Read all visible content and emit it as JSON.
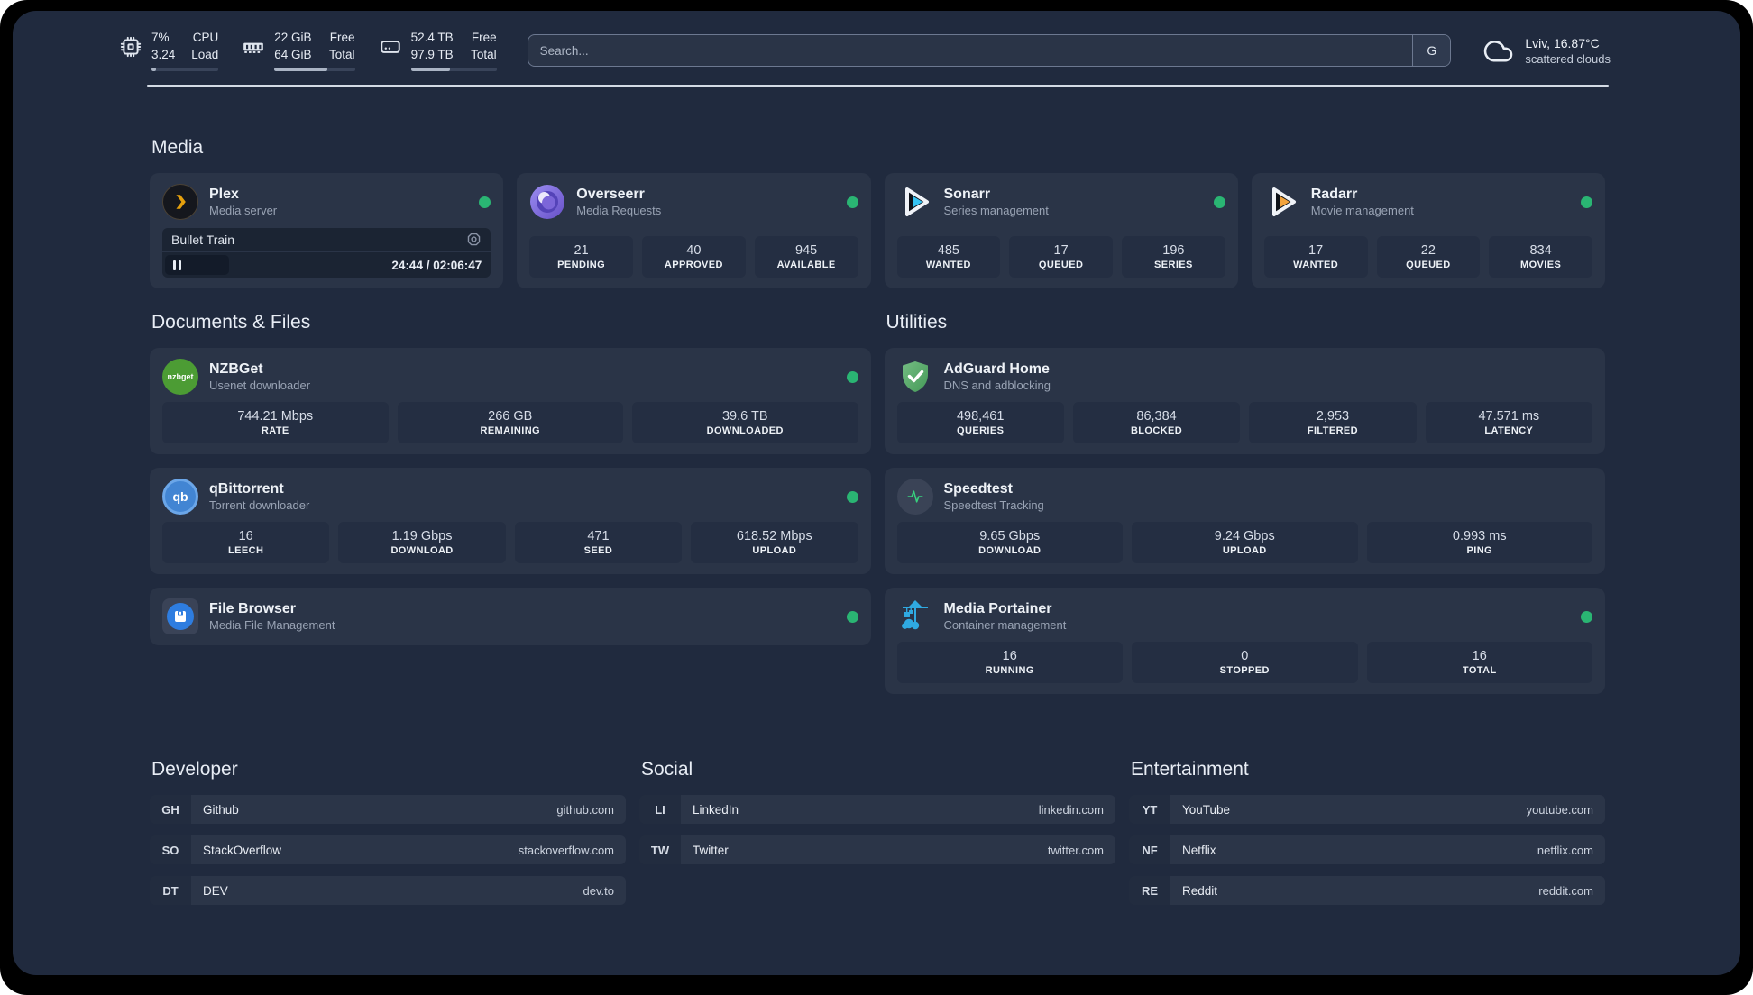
{
  "topbar": {
    "cpu": {
      "value1": "7%",
      "value2": "3.24",
      "label1": "CPU",
      "label2": "Load",
      "progress_pct": 7
    },
    "ram": {
      "value1": "22 GiB",
      "value2": "64 GiB",
      "label1": "Free",
      "label2": "Total",
      "progress_pct": 66
    },
    "disk": {
      "value1": "52.4 TB",
      "value2": "97.9 TB",
      "label1": "Free",
      "label2": "Total",
      "progress_pct": 46
    },
    "search": {
      "placeholder": "Search...",
      "button_label": "G"
    },
    "weather": {
      "location_temp": "Lviv, 16.87°C",
      "condition": "scattered clouds"
    }
  },
  "sections": {
    "media": "Media",
    "documents": "Documents & Files",
    "utilities": "Utilities",
    "developer": "Developer",
    "social": "Social",
    "entertainment": "Entertainment"
  },
  "apps": {
    "plex": {
      "name": "Plex",
      "desc": "Media server",
      "player": {
        "title": "Bullet Train",
        "time": "24:44 / 02:06:47",
        "progress_pct": 19.5
      }
    },
    "overseerr": {
      "name": "Overseerr",
      "desc": "Media Requests",
      "stats": [
        {
          "value": "21",
          "label": "PENDING"
        },
        {
          "value": "40",
          "label": "APPROVED"
        },
        {
          "value": "945",
          "label": "AVAILABLE"
        }
      ]
    },
    "sonarr": {
      "name": "Sonarr",
      "desc": "Series management",
      "stats": [
        {
          "value": "485",
          "label": "WANTED"
        },
        {
          "value": "17",
          "label": "QUEUED"
        },
        {
          "value": "196",
          "label": "SERIES"
        }
      ]
    },
    "radarr": {
      "name": "Radarr",
      "desc": "Movie management",
      "stats": [
        {
          "value": "17",
          "label": "WANTED"
        },
        {
          "value": "22",
          "label": "QUEUED"
        },
        {
          "value": "834",
          "label": "MOVIES"
        }
      ]
    },
    "nzbget": {
      "name": "NZBGet",
      "desc": "Usenet downloader",
      "icon_text": "nzbget",
      "stats": [
        {
          "value": "744.21 Mbps",
          "label": "RATE"
        },
        {
          "value": "266 GB",
          "label": "REMAINING"
        },
        {
          "value": "39.6 TB",
          "label": "DOWNLOADED"
        }
      ]
    },
    "qbittorrent": {
      "name": "qBittorrent",
      "desc": "Torrent downloader",
      "icon_text": "qb",
      "stats": [
        {
          "value": "16",
          "label": "LEECH"
        },
        {
          "value": "1.19 Gbps",
          "label": "DOWNLOAD"
        },
        {
          "value": "471",
          "label": "SEED"
        },
        {
          "value": "618.52 Mbps",
          "label": "UPLOAD"
        }
      ]
    },
    "filebrowser": {
      "name": "File Browser",
      "desc": "Media File Management"
    },
    "adguard": {
      "name": "AdGuard Home",
      "desc": "DNS and adblocking",
      "stats": [
        {
          "value": "498,461",
          "label": "QUERIES"
        },
        {
          "value": "86,384",
          "label": "BLOCKED"
        },
        {
          "value": "2,953",
          "label": "FILTERED"
        },
        {
          "value": "47.571 ms",
          "label": "LATENCY"
        }
      ]
    },
    "speedtest": {
      "name": "Speedtest",
      "desc": "Speedtest Tracking",
      "stats": [
        {
          "value": "9.65 Gbps",
          "label": "DOWNLOAD"
        },
        {
          "value": "9.24 Gbps",
          "label": "UPLOAD"
        },
        {
          "value": "0.993 ms",
          "label": "PING"
        }
      ]
    },
    "portainer": {
      "name": "Media Portainer",
      "desc": "Container management",
      "stats": [
        {
          "value": "16",
          "label": "RUNNING"
        },
        {
          "value": "0",
          "label": "STOPPED"
        },
        {
          "value": "16",
          "label": "TOTAL"
        }
      ]
    }
  },
  "links": {
    "developer": [
      {
        "abbr": "GH",
        "name": "Github",
        "url": "github.com"
      },
      {
        "abbr": "SO",
        "name": "StackOverflow",
        "url": "stackoverflow.com"
      },
      {
        "abbr": "DT",
        "name": "DEV",
        "url": "dev.to"
      }
    ],
    "social": [
      {
        "abbr": "LI",
        "name": "LinkedIn",
        "url": "linkedin.com"
      },
      {
        "abbr": "TW",
        "name": "Twitter",
        "url": "twitter.com"
      }
    ],
    "entertainment": [
      {
        "abbr": "YT",
        "name": "YouTube",
        "url": "youtube.com"
      },
      {
        "abbr": "NF",
        "name": "Netflix",
        "url": "netflix.com"
      },
      {
        "abbr": "RE",
        "name": "Reddit",
        "url": "reddit.com"
      }
    ]
  },
  "colors": {
    "status_online": "#2ab573",
    "plex_gold": "#e5a00d",
    "sonarr_cyan": "#36c3f2",
    "radarr_orange": "#f2a33c",
    "adguard_green": "#55a865",
    "portainer_blue": "#2fa9e1"
  }
}
